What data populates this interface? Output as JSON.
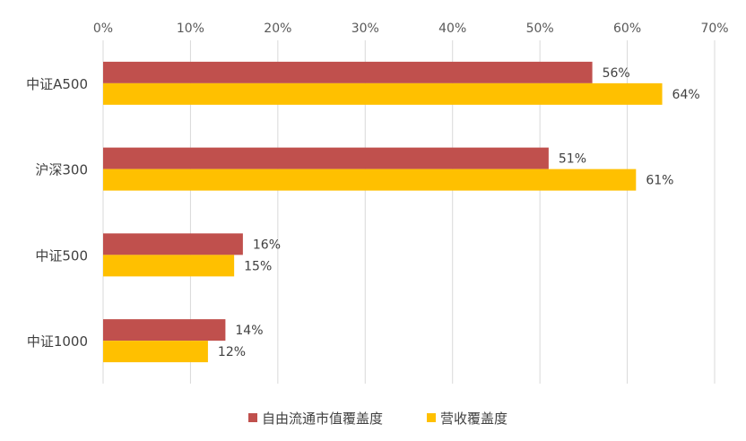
{
  "chart_data": {
    "type": "bar",
    "orientation": "horizontal",
    "categories": [
      "中证A500",
      "沪深300",
      "中证500",
      "中证1000"
    ],
    "series": [
      {
        "name": "自由流通市值覆盖度",
        "color": "#c0504d",
        "values": [
          56,
          51,
          16,
          14
        ],
        "labels": [
          "56%",
          "51%",
          "16%",
          "14%"
        ]
      },
      {
        "name": "营收覆盖度",
        "color": "#ffc000",
        "values": [
          64,
          61,
          15,
          12
        ],
        "labels": [
          "64%",
          "61%",
          "15%",
          "12%"
        ]
      }
    ],
    "xlim": [
      0,
      70
    ],
    "xticks": [
      "0%",
      "10%",
      "20%",
      "30%",
      "40%",
      "50%",
      "60%",
      "70%"
    ],
    "xaxis_position": "top",
    "grid": true,
    "gridline_color": "#d9d9d9",
    "legend_position": "bottom"
  }
}
